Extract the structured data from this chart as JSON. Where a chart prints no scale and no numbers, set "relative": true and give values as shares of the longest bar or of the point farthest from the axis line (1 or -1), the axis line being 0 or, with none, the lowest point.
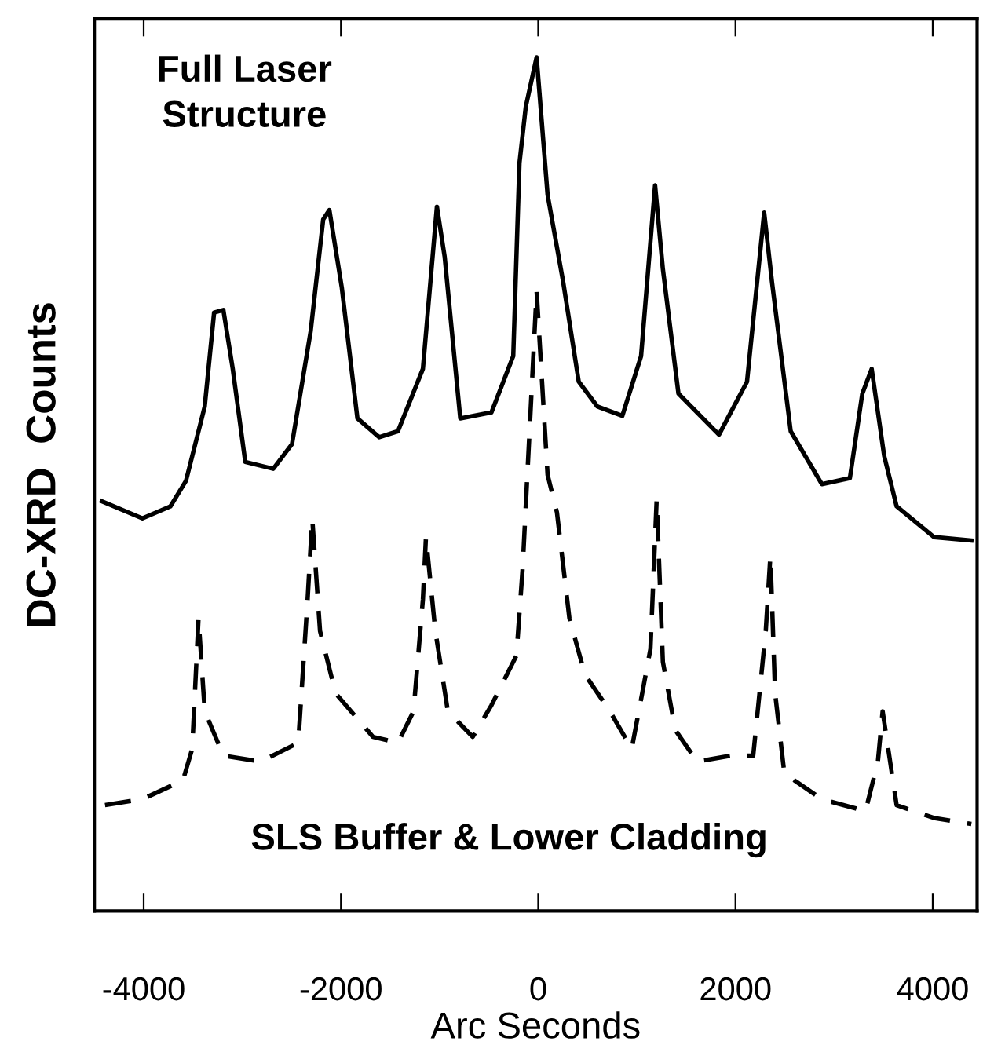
{
  "chart_data": {
    "type": "line",
    "relative": true,
    "xlabel": "Arc Seconds",
    "ylabel": "DC-XRD  Counts",
    "xlim": [
      -4500,
      4450
    ],
    "xticks": [
      -4000,
      -2000,
      0,
      2000,
      4000
    ],
    "tick_labels": "x",
    "grid": false,
    "marker": "none",
    "annotations": [
      "Full Laser\nStructure",
      "SLS Buffer & Lower Cladding"
    ],
    "series": [
      {
        "color": "#000000",
        "line_style": "solid",
        "x": [
          -4424,
          -4013,
          -3729,
          -3571,
          -3381,
          -3286,
          -3192,
          -3097,
          -2970,
          -2686,
          -2496,
          -2307,
          -2180,
          -2117,
          -1991,
          -1833,
          -1612,
          -1422,
          -1169,
          -1027,
          -948,
          -790,
          -474,
          -253,
          -190,
          -126,
          -16,
          95,
          253,
          411,
          600,
          853,
          1043,
          1185,
          1264,
          1422,
          1833,
          2117,
          2291,
          2370,
          2560,
          2876,
          3160,
          3286,
          3381,
          3508,
          3634,
          4013,
          4392
        ],
        "values": [
          0.48,
          0.46,
          0.474,
          0.504,
          0.591,
          0.701,
          0.704,
          0.635,
          0.526,
          0.518,
          0.547,
          0.679,
          0.81,
          0.821,
          0.73,
          0.577,
          0.555,
          0.562,
          0.635,
          0.825,
          0.766,
          0.577,
          0.584,
          0.65,
          0.876,
          0.942,
          1.0,
          0.839,
          0.737,
          0.62,
          0.591,
          0.58,
          0.65,
          0.85,
          0.752,
          0.606,
          0.558,
          0.62,
          0.818,
          0.737,
          0.562,
          0.5,
          0.507,
          0.606,
          0.635,
          0.533,
          0.474,
          0.438,
          0.434
        ]
      },
      {
        "color": "#000000",
        "line_style": "dashed",
        "x": [
          -4392,
          -4013,
          -3602,
          -3508,
          -3444,
          -3381,
          -3192,
          -2812,
          -2433,
          -2338,
          -2291,
          -2212,
          -2054,
          -1675,
          -1422,
          -1264,
          -1169,
          -1138,
          -1043,
          -916,
          -664,
          -474,
          -221,
          -158,
          -16,
          95,
          190,
          316,
          474,
          727,
          948,
          1043,
          1138,
          1201,
          1264,
          1390,
          1612,
          1959,
          2180,
          2307,
          2354,
          2402,
          2496,
          2876,
          3318,
          3444,
          3492,
          3634,
          4013,
          4392
        ],
        "values": [
          0.124,
          0.131,
          0.153,
          0.19,
          0.343,
          0.234,
          0.182,
          0.175,
          0.197,
          0.365,
          0.46,
          0.328,
          0.255,
          0.204,
          0.197,
          0.234,
          0.365,
          0.438,
          0.328,
          0.234,
          0.204,
          0.241,
          0.299,
          0.401,
          0.726,
          0.511,
          0.467,
          0.343,
          0.277,
          0.234,
          0.19,
          0.248,
          0.307,
          0.482,
          0.292,
          0.212,
          0.175,
          0.182,
          0.182,
          0.328,
          0.416,
          0.255,
          0.161,
          0.131,
          0.117,
          0.175,
          0.234,
          0.124,
          0.109,
          0.102
        ]
      }
    ]
  }
}
